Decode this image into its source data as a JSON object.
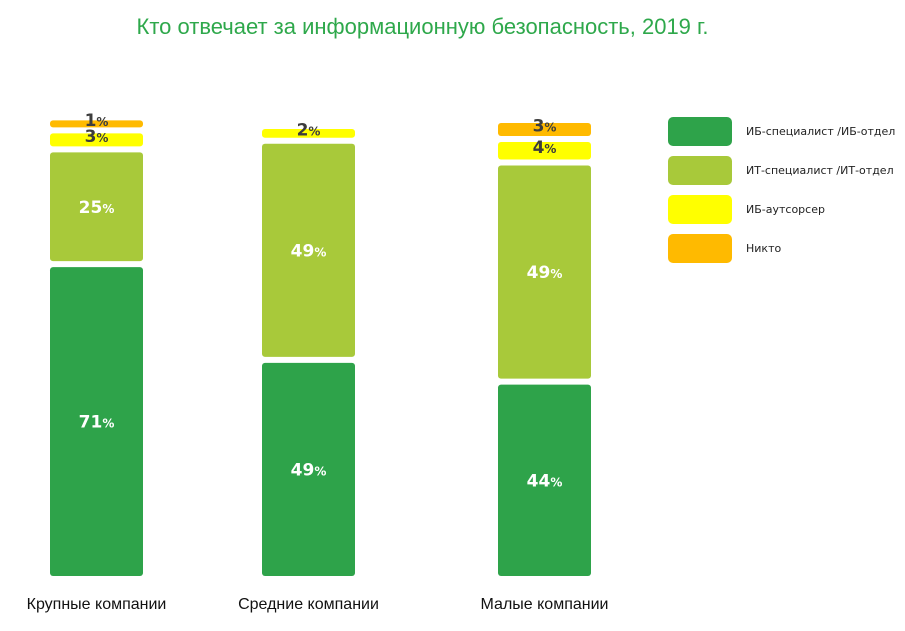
{
  "chart_data": {
    "type": "stacked-bar",
    "title": "Кто отвечает за информационную безопасность, 2019 г.",
    "categories": [
      "Крупные компании",
      "Средние компании",
      "Малые компании"
    ],
    "series": [
      {
        "name": "ИБ-специалист /ИБ-отдел",
        "color": "#2ea34a",
        "values": [
          71,
          49,
          44
        ]
      },
      {
        "name": "ИТ-специалист /ИТ-отдел",
        "color": "#a8c93a",
        "values": [
          25,
          49,
          49
        ]
      },
      {
        "name": "ИБ-аутсорсер",
        "color": "#ffff00",
        "values": [
          3,
          2,
          4
        ]
      },
      {
        "name": "Никто",
        "color": "#ffba00",
        "values": [
          1,
          0,
          3
        ]
      }
    ],
    "value_suffix": "%",
    "legend_position": "right",
    "grid": false
  }
}
